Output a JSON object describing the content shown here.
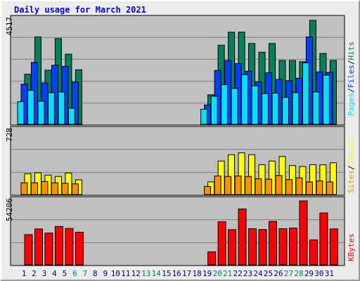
{
  "title": "Daily usage for March 2021",
  "colors": {
    "hits": "#00805c",
    "files": "#0040ff",
    "pages": "#00e0ff",
    "visits": "#ffff00",
    "sites": "#ff9000",
    "kbytes": "#ff0000",
    "weekend_label": "#00805c",
    "weekday_label": "#000080"
  },
  "chart_data": [
    {
      "type": "bar",
      "panel": "top",
      "max_label": "4517",
      "legend": [
        "Pages",
        "Files",
        "Hits"
      ],
      "days": [
        1,
        2,
        3,
        4,
        5,
        6,
        7,
        8,
        9,
        10,
        11,
        12,
        13,
        14,
        15,
        16,
        17,
        18,
        19,
        20,
        21,
        22,
        23,
        24,
        25,
        26,
        27,
        28,
        29,
        30,
        31
      ],
      "weekend_days": [
        6,
        7,
        13,
        14,
        20,
        21,
        27,
        28
      ],
      "ylim": [
        0,
        4517
      ],
      "series": [
        {
          "name": "Hits",
          "values": [
            2120,
            3700,
            2290,
            3630,
            2970,
            2310,
            0,
            0,
            0,
            0,
            0,
            0,
            0,
            0,
            0,
            0,
            0,
            0,
            1250,
            3350,
            3900,
            3900,
            3420,
            3050,
            3420,
            2700,
            2700,
            2650,
            4400,
            3000,
            2700
          ]
        },
        {
          "name": "Files",
          "values": [
            1700,
            2620,
            1750,
            2500,
            2450,
            1790,
            0,
            0,
            0,
            0,
            0,
            0,
            0,
            0,
            0,
            0,
            0,
            0,
            820,
            2280,
            2700,
            2570,
            2250,
            1790,
            2180,
            1900,
            1850,
            1950,
            3700,
            2220,
            2200
          ]
        },
        {
          "name": "Pages",
          "values": [
            960,
            1440,
            980,
            1340,
            1370,
            680,
            0,
            0,
            0,
            0,
            0,
            0,
            0,
            0,
            0,
            0,
            0,
            0,
            640,
            1190,
            1680,
            1520,
            2100,
            1630,
            1300,
            1320,
            1140,
            1340,
            2600,
            1370,
            2080
          ]
        }
      ]
    },
    {
      "type": "bar",
      "panel": "middle",
      "max_label": "728",
      "legend": [
        "Sites",
        "Visits"
      ],
      "ylim": [
        0,
        728
      ],
      "series": [
        {
          "name": "Visits",
          "values": [
            230,
            240,
            215,
            200,
            238,
            163,
            0,
            0,
            0,
            0,
            0,
            0,
            0,
            0,
            0,
            0,
            0,
            0,
            140,
            370,
            440,
            460,
            440,
            330,
            370,
            420,
            320,
            310,
            330,
            328,
            350
          ]
        },
        {
          "name": "Sites",
          "values": [
            130,
            130,
            144,
            130,
            124,
            118,
            0,
            0,
            0,
            0,
            0,
            0,
            0,
            0,
            0,
            0,
            0,
            0,
            90,
            205,
            200,
            205,
            200,
            175,
            170,
            210,
            165,
            185,
            140,
            150,
            140
          ]
        }
      ]
    },
    {
      "type": "bar",
      "panel": "bottom",
      "max_label": "54206",
      "legend": [
        "KBytes"
      ],
      "ylim": [
        0,
        54206
      ],
      "series": [
        {
          "name": "KBytes",
          "values": [
            24800,
            29450,
            26100,
            31500,
            29900,
            26800,
            0,
            0,
            0,
            0,
            0,
            0,
            0,
            0,
            0,
            0,
            0,
            0,
            10700,
            35400,
            28900,
            45900,
            29700,
            29000,
            35700,
            29700,
            30200,
            52500,
            20500,
            42600,
            29500
          ]
        }
      ]
    }
  ]
}
